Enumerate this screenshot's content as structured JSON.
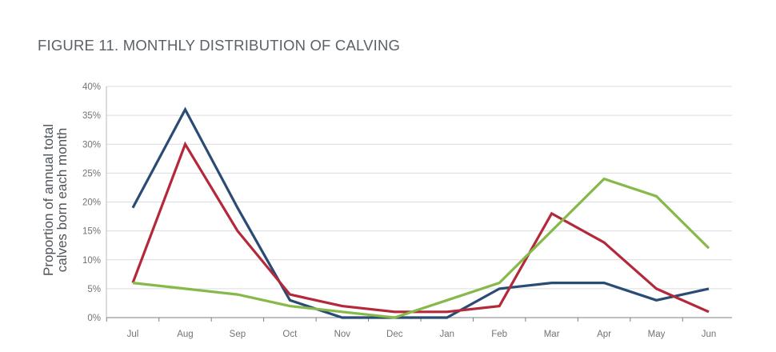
{
  "chart_data": {
    "type": "line",
    "title": "FIGURE 11. MONTHLY DISTRIBUTION OF CALVING",
    "xlabel": "",
    "ylabel": "Proportion of annual total calves born each month",
    "ylabel_lines": [
      "Proportion of annual total",
      "calves born each month"
    ],
    "categories": [
      "Jul",
      "Aug",
      "Sep",
      "Oct",
      "Nov",
      "Dec",
      "Jan",
      "Feb",
      "Mar",
      "Apr",
      "May",
      "Jun"
    ],
    "y_ticks": [
      "0%",
      "5%",
      "10%",
      "15%",
      "20%",
      "25%",
      "30%",
      "35%",
      "40%"
    ],
    "ylim": [
      0,
      40
    ],
    "grid": true,
    "series": [
      {
        "color": "#2a4b73",
        "values": [
          19,
          36,
          19,
          3,
          0,
          0,
          0,
          5,
          6,
          6,
          3,
          5
        ]
      },
      {
        "color": "#b3283a",
        "values": [
          6,
          30,
          15,
          4,
          2,
          1,
          1,
          2,
          18,
          13,
          5,
          1
        ]
      },
      {
        "color": "#86b94a",
        "values": [
          6,
          5,
          4,
          2,
          1,
          0,
          3,
          6,
          15,
          24,
          21,
          12
        ]
      }
    ]
  }
}
